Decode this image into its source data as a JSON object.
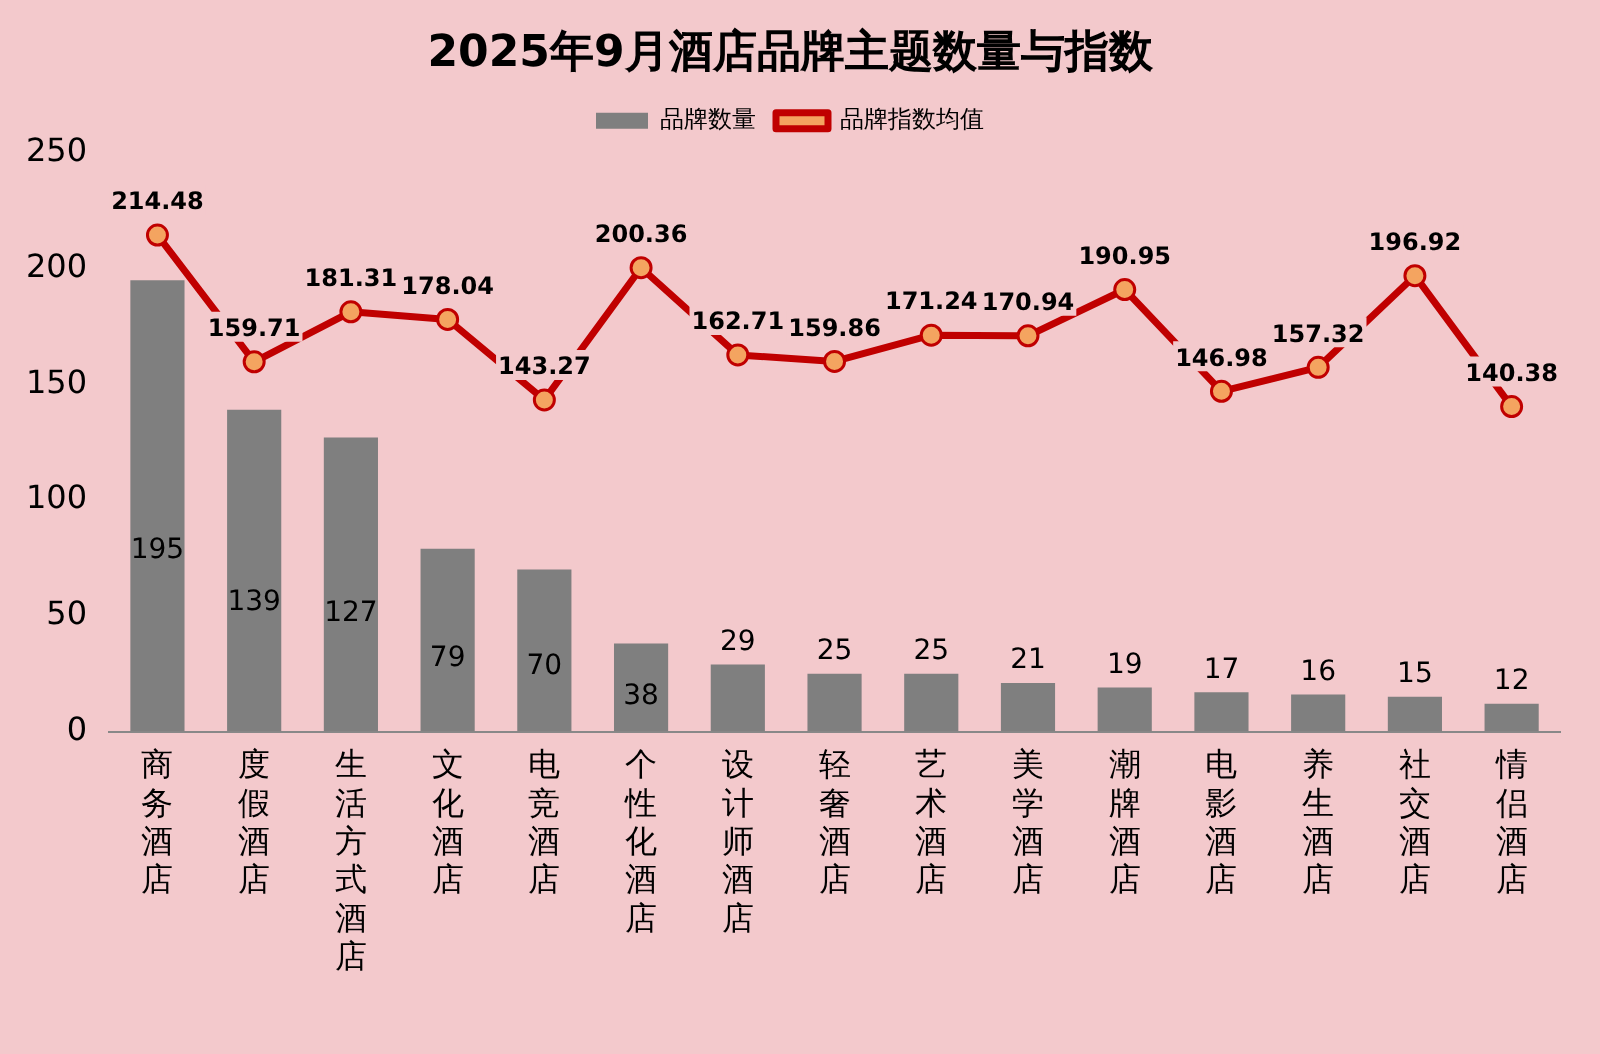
{
  "chart_data": {
    "type": "bar",
    "title": "2025年9月酒店品牌主题数量与指数",
    "categories": [
      "商务酒店",
      "度假酒店",
      "生活方式酒店",
      "文化酒店",
      "电竞酒店",
      "个性化酒店",
      "设计师酒店",
      "轻奢酒店",
      "艺术酒店",
      "美学酒店",
      "潮牌酒店",
      "电影酒店",
      "养生酒店",
      "社交酒店",
      "情侣酒店"
    ],
    "series": [
      {
        "name": "品牌数量",
        "color": "#7f7f7f",
        "values": [
          195,
          139,
          127,
          79,
          70,
          38,
          29,
          25,
          25,
          21,
          19,
          17,
          16,
          15,
          12
        ]
      },
      {
        "name": "品牌指数均值",
        "type": "line",
        "color": "#c00000",
        "values": [
          214.48,
          159.71,
          181.31,
          178.04,
          143.27,
          200.36,
          162.71,
          159.86,
          171.24,
          170.94,
          190.95,
          146.98,
          157.32,
          196.92,
          140.38
        ]
      }
    ],
    "ylim": [
      0,
      250
    ],
    "yticks": [
      0,
      50,
      100,
      150,
      200,
      250
    ],
    "grid": false,
    "legend": "top",
    "data_labels": true,
    "marker": "circle"
  }
}
